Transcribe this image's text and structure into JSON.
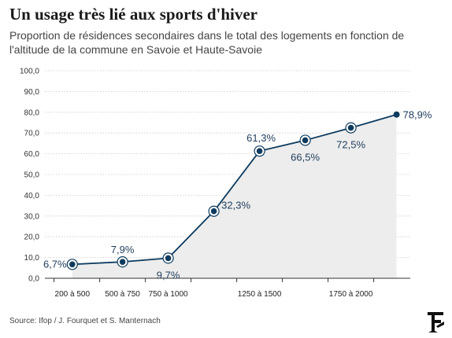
{
  "chart_data": {
    "type": "line",
    "title": "Un usage très lié aux sports d'hiver",
    "subtitle": "Proportion de résidences secondaires dans le total des logements en fonction de l'altitude de la commune en Savoie et Haute-Savoie",
    "x": [
      350,
      625,
      875,
      1125,
      1375,
      1625,
      1875,
      2125
    ],
    "x_tick_labels": [
      {
        "x": 350,
        "label": "200 à 500"
      },
      {
        "x": 625,
        "label": "500 à 750"
      },
      {
        "x": 875,
        "label": "750 à 1000"
      },
      {
        "x": 1375,
        "label": "1250 à 1500"
      },
      {
        "x": 1875,
        "label": "1750 à 2000"
      }
    ],
    "series": [
      {
        "values": [
          6.7,
          7.9,
          9.7,
          32.3,
          61.3,
          66.5,
          72.5,
          78.9
        ]
      }
    ],
    "data_labels": [
      "6,7%",
      "7,9%",
      "9,7%",
      "32,3%",
      "61,3%",
      "66,5%",
      "72,5%",
      "78,9%"
    ],
    "y_tick_labels": [
      "0,0",
      "10,0",
      "20,0",
      "30,0",
      "40,0",
      "50,0",
      "60,0",
      "70,0",
      "80,0",
      "90,0",
      "100,0"
    ],
    "ylim": [
      0,
      100
    ],
    "xlabel": "",
    "ylabel": "",
    "grid": true,
    "area_fill": true,
    "colors": {
      "line": "#0d3b5e",
      "area": "#ededed",
      "grid": "#cccccc",
      "label": "#1f3d5c"
    }
  },
  "source": "Source: Ifop / J. Fourquet et S. Manternach",
  "logo_icon": "le-figaro-logo-icon"
}
